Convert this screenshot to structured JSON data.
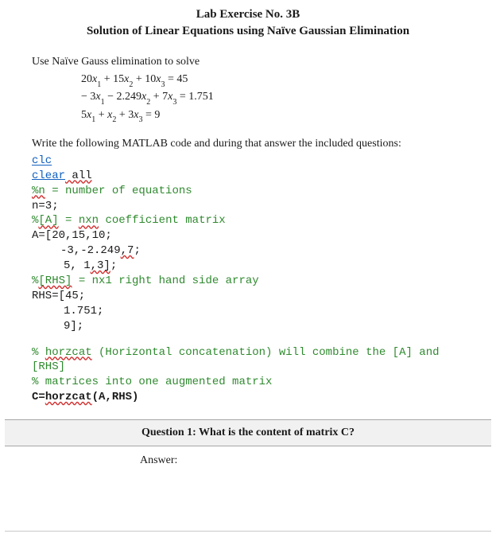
{
  "header": {
    "title": "Lab Exercise No. 3B",
    "subtitle": "Solution of Linear Equations using Naïve Gaussian Elimination"
  },
  "colors": {
    "text": "#1a1a1a",
    "background": "#ffffff",
    "keyword": "#1060c0",
    "comment": "#2f8a2f",
    "squiggle": "#d03030",
    "qbar_bg": "#f1f1f1",
    "qbar_border": "#a6a6a6",
    "bottom_rule": "#c9c9c9"
  },
  "typography": {
    "body_font": "Times New Roman",
    "body_size_pt": 11,
    "code_font": "Courier New",
    "code_size_pt": 11,
    "title_bold": true
  },
  "problem": {
    "instruction": "Use Naïve Gauss elimination to solve",
    "equations": {
      "eq1": "20x₁ + 15x₂ + 10x₃ = 45",
      "eq2": "− 3x₁ − 2.249x₂ + 7x₃ = 1.751",
      "eq3": "5x₁ + x₂ + 3x₃ = 9"
    },
    "task": "Write the following MATLAB code and during that answer the included questions:"
  },
  "code": {
    "l1": "clc",
    "l2a": "clear",
    "l2b": " all",
    "l3a": "%n",
    "l3b": " = number of equations",
    "l4": "n=3;",
    "l5a": "%",
    "l5b": "[A]",
    "l5c": " = ",
    "l5d": "nxn",
    "l5e": " coefficient matrix",
    "l6": "A=[20,15,10;",
    "l7a": "-3,-2.249",
    "l7b": ",7",
    "l7c": ";",
    "l8a": "5, 1",
    "l8b": ",3]",
    "l8c": ";",
    "l9a": "%",
    "l9b": "[RHS]",
    "l9c": " = nx1 right hand side array",
    "l10": "RHS=[45;",
    "l11": "1.751;",
    "l12": "9];",
    "b2l1a": "% ",
    "b2l1b": "horzcat",
    "b2l1c": " (Horizontal concatenation) will combine the [A] and [RHS]",
    "b2l2": "% matrices into one augmented matrix",
    "b2l3a": "C=",
    "b2l3b": "horzcat",
    "b2l3c": "(A,RHS)"
  },
  "question": {
    "prompt": "Question 1: What is the content of matrix C?",
    "answer_label": "Answer:"
  },
  "matlab_data": {
    "n": 3,
    "A": [
      [
        20,
        15,
        10
      ],
      [
        -3,
        -2.249,
        7
      ],
      [
        5,
        1,
        3
      ]
    ],
    "RHS": [
      45,
      1.751,
      9
    ]
  }
}
